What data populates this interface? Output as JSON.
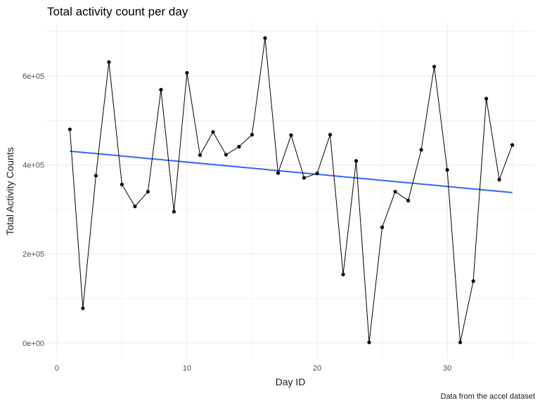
{
  "chart_data": {
    "type": "line",
    "title": "Total activity count per day",
    "xlabel": "Day ID",
    "ylabel": "Total Activity Counts",
    "caption": "Data from the accel dataset",
    "xlim": [
      -0.75,
      36.75
    ],
    "ylim": [
      -35000,
      720000
    ],
    "x_ticks": [
      0,
      10,
      20,
      30
    ],
    "x_tick_labels": [
      "0",
      "10",
      "20",
      "30"
    ],
    "x_minor_ticks": [
      5,
      15,
      25,
      35
    ],
    "y_ticks": [
      0,
      200000,
      400000,
      600000
    ],
    "y_tick_labels": [
      "0e+00",
      "2e+05",
      "4e+05",
      "6e+05"
    ],
    "y_minor_ticks": [
      100000,
      300000,
      500000,
      700000
    ],
    "grid": true,
    "colors": {
      "line": "#000000",
      "point": "#000000",
      "trend": "#3366ff",
      "grid": "#ebebeb"
    },
    "series": [
      {
        "x": [
          1,
          2,
          3,
          4,
          5,
          6,
          7,
          8,
          9,
          10,
          11,
          12,
          13,
          14,
          15,
          16,
          17,
          18,
          19,
          20,
          21,
          22,
          23,
          24,
          25,
          26,
          27,
          28,
          29,
          30,
          31,
          32,
          33,
          34,
          35
        ],
        "values": [
          480000,
          78000,
          376000,
          631000,
          356000,
          307000,
          340000,
          569000,
          295000,
          607000,
          422000,
          474000,
          423000,
          441000,
          468000,
          685000,
          382000,
          467000,
          371000,
          381000,
          468000,
          154000,
          409000,
          1500,
          260000,
          340000,
          320000,
          434000,
          621000,
          389000,
          1500,
          139000,
          549000,
          367000,
          445000
        ]
      }
    ],
    "trend": {
      "x": [
        1,
        35
      ],
      "values": [
        431000,
        338000
      ]
    }
  }
}
